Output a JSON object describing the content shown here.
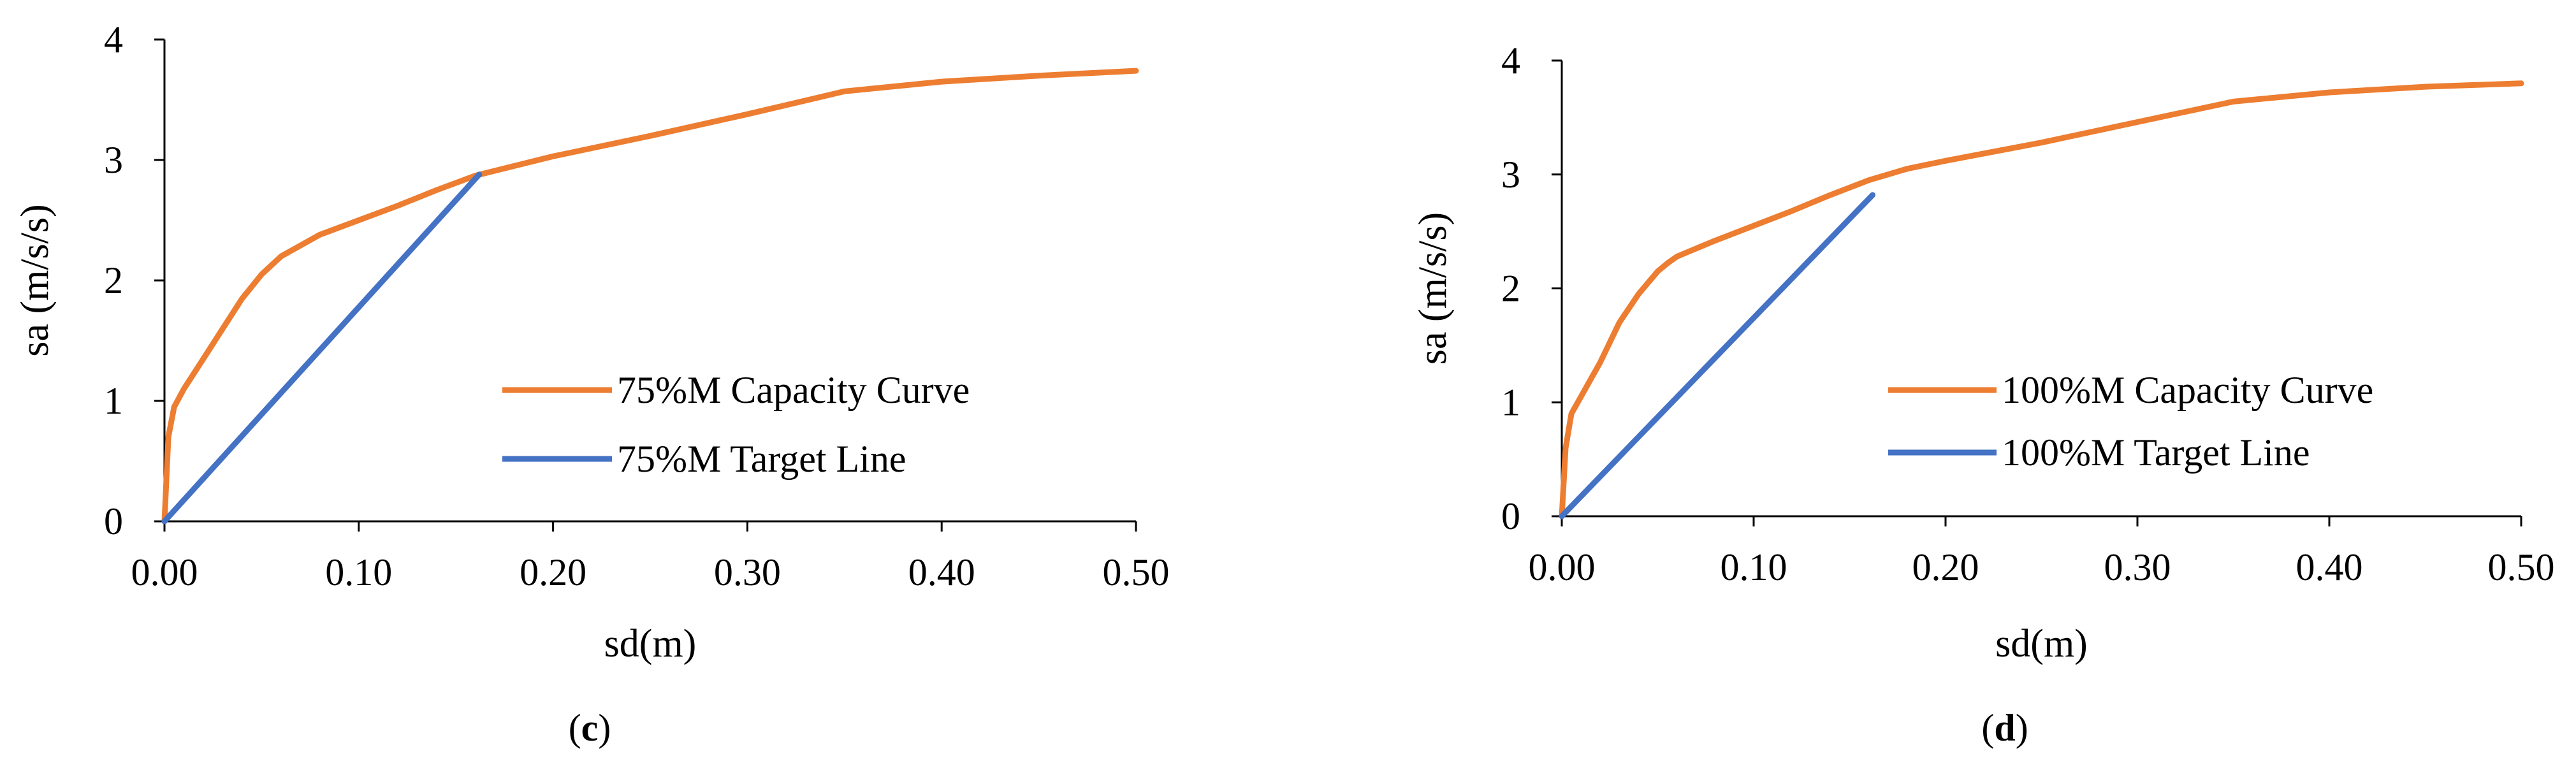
{
  "chart_data": [
    {
      "type": "line",
      "panel_label": "(c)",
      "xlabel": "sd(m)",
      "ylabel": "sa (m/s/s)",
      "xlim": [
        0,
        0.5
      ],
      "ylim": [
        0,
        4
      ],
      "x_ticks": [
        "0.00",
        "0.10",
        "0.20",
        "0.30",
        "0.40",
        "0.50"
      ],
      "y_ticks": [
        "0",
        "1",
        "2",
        "3",
        "4"
      ],
      "legend_position": "center-right",
      "series": [
        {
          "name": "75%M Capacity Curve",
          "color": "#ED7D31",
          "x": [
            0,
            0.002,
            0.005,
            0.01,
            0.02,
            0.03,
            0.04,
            0.05,
            0.06,
            0.08,
            0.1,
            0.12,
            0.14,
            0.16,
            0.18,
            0.2,
            0.25,
            0.3,
            0.35,
            0.4,
            0.45,
            0.5
          ],
          "y": [
            0,
            0.7,
            0.95,
            1.1,
            1.35,
            1.6,
            1.85,
            2.05,
            2.2,
            2.38,
            2.5,
            2.62,
            2.75,
            2.87,
            2.95,
            3.03,
            3.2,
            3.38,
            3.57,
            3.65,
            3.7,
            3.74
          ]
        },
        {
          "name": "75%M Target Line",
          "color": "#4472C4",
          "x": [
            0,
            0.162
          ],
          "y": [
            0,
            2.88
          ]
        }
      ]
    },
    {
      "type": "line",
      "panel_label": "(d)",
      "xlabel": "sd(m)",
      "ylabel": "sa (m/s/s)",
      "xlim": [
        0,
        0.5
      ],
      "ylim": [
        0,
        4
      ],
      "x_ticks": [
        "0.00",
        "0.10",
        "0.20",
        "0.30",
        "0.40",
        "0.50"
      ],
      "y_ticks": [
        "0",
        "1",
        "2",
        "3",
        "4"
      ],
      "legend_position": "center-right",
      "series": [
        {
          "name": "100%M Capacity Curve",
          "color": "#ED7D31",
          "x": [
            0,
            0.002,
            0.005,
            0.01,
            0.02,
            0.03,
            0.04,
            0.05,
            0.055,
            0.06,
            0.08,
            0.1,
            0.12,
            0.14,
            0.16,
            0.18,
            0.2,
            0.25,
            0.3,
            0.35,
            0.4,
            0.45,
            0.5
          ],
          "y": [
            0,
            0.6,
            0.9,
            1.05,
            1.35,
            1.7,
            1.95,
            2.15,
            2.22,
            2.28,
            2.42,
            2.55,
            2.68,
            2.82,
            2.95,
            3.05,
            3.12,
            3.28,
            3.46,
            3.64,
            3.72,
            3.77,
            3.8
          ]
        },
        {
          "name": "100%M Target Line",
          "color": "#4472C4",
          "x": [
            0,
            0.162
          ],
          "y": [
            0,
            2.82
          ]
        }
      ]
    }
  ]
}
